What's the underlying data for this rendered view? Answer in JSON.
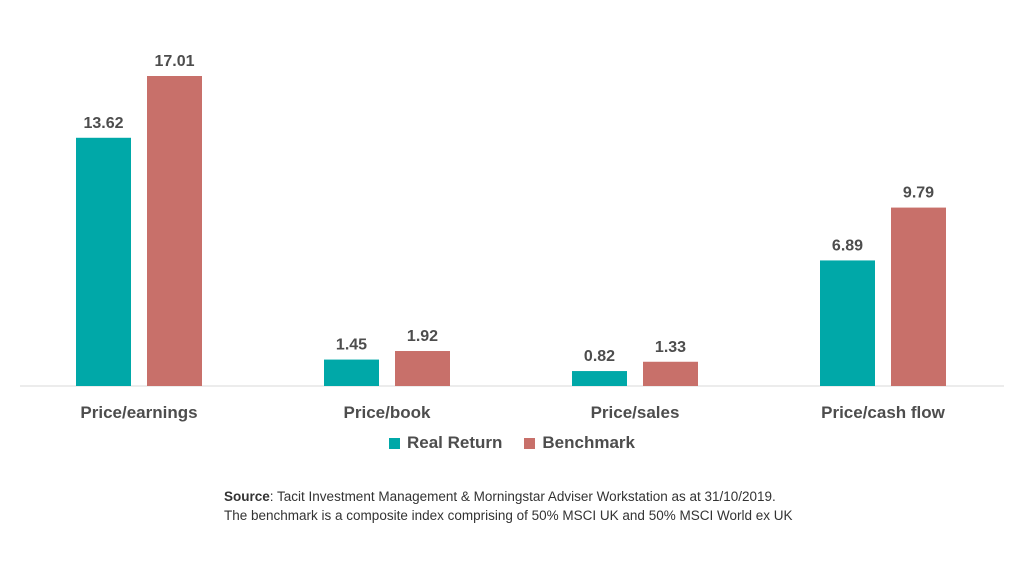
{
  "chart_data": {
    "type": "bar",
    "categories": [
      "Price/earnings",
      "Price/book",
      "Price/sales",
      "Price/cash flow"
    ],
    "series": [
      {
        "name": "Real Return",
        "values": [
          13.62,
          1.45,
          0.82,
          6.89
        ],
        "labels": [
          "13.62",
          "1.45",
          "0.82",
          "6.89"
        ],
        "color": "#00a8a8"
      },
      {
        "name": "Benchmark",
        "values": [
          17.01,
          1.92,
          1.33,
          9.79
        ],
        "labels": [
          "17.01",
          "1.92",
          "1.33",
          "9.79"
        ],
        "color": "#c8706a"
      }
    ],
    "ylim": [
      0,
      17.01
    ],
    "grid": false,
    "legend_position": "bottom"
  },
  "source": {
    "label": "Source",
    "line1": ": Tacit Investment Management & Morningstar Adviser Workstation as at 31/10/2019.",
    "line2": "The benchmark is a composite index comprising of 50% MSCI UK and 50% MSCI World ex UK"
  },
  "colors": {
    "axis": "#d9d9d9",
    "text": "#4d4d4d"
  }
}
